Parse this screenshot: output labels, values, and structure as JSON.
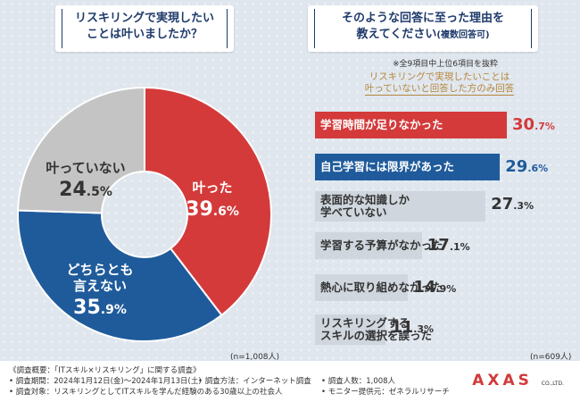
{
  "left_title": [
    "リスキリングで実現したい",
    "ことは叶いましたか？"
  ],
  "right_title": [
    "そのような回答に至った理由を",
    "教えてください",
    "(複数回答可)"
  ],
  "top_note": "※全9項目中上位6項目を抜粋",
  "subnote": [
    "リスキリングで実現したいことは",
    "叶っていないと回答した方のみ回答"
  ],
  "left_n": "(n=1,008人)",
  "right_n": "(n=609人)",
  "colors": {
    "red": "#d43a3a",
    "blue": "#1f5b9b",
    "gray": "#c4c4c4",
    "light": "#cfd6de"
  },
  "chart_data": [
    {
      "type": "pie",
      "title": "リスキリングで実現したいことは叶いましたか？",
      "slices": [
        {
          "label": "叶った",
          "value": 39.6,
          "color": "#d43a3a",
          "label_lines": [
            "叶った"
          ]
        },
        {
          "label": "どちらとも言えない",
          "value": 35.9,
          "color": "#1f5b9b",
          "label_lines": [
            "どちらとも",
            "言えない"
          ]
        },
        {
          "label": "叶っていない",
          "value": 24.5,
          "color": "#c4c4c4",
          "label_lines": [
            "叶っていない"
          ]
        }
      ],
      "unit": "%"
    },
    {
      "type": "bar",
      "orientation": "horizontal",
      "title": "そのような回答に至った理由を教えてください(複数回答可)",
      "categories": [
        "学習時間が足りなかった",
        "自己学習には限界があった",
        "表面的な知識しか学べていない",
        "学習する予算がなかった",
        "熱心に取り組めなかった",
        "リスキリングするスキルの選択を誤った"
      ],
      "label_lines": [
        [
          "学習時間が足りなかった"
        ],
        [
          "自己学習には限界があった"
        ],
        [
          "表面的な知識しか",
          "学べていない"
        ],
        [
          "学習する予算がなかった"
        ],
        [
          "熱心に取り組めなかった"
        ],
        [
          "リスキリングする",
          "スキルの選択を誤った"
        ]
      ],
      "values": [
        30.7,
        29.6,
        27.3,
        17.1,
        14.9,
        11.3
      ],
      "unit": "%"
    }
  ],
  "footer": {
    "line1": "《調査概要：「ITスキル×リスキリング」に関する調査》",
    "period": "• 調査期間：2024年1月12日(金)～2024年1月13日(土)",
    "method": "• 調査方法：インターネット調査",
    "count": "• 調査人数：1,008人",
    "target": "• 調査対象：リスキリングとしてITスキルを学んだ経験のある30歳以上の社会人",
    "provider": "• モニター提供元：ゼネラルリサーチ",
    "logo_main": "AXAS",
    "logo_sub": "CO.,LTD."
  }
}
